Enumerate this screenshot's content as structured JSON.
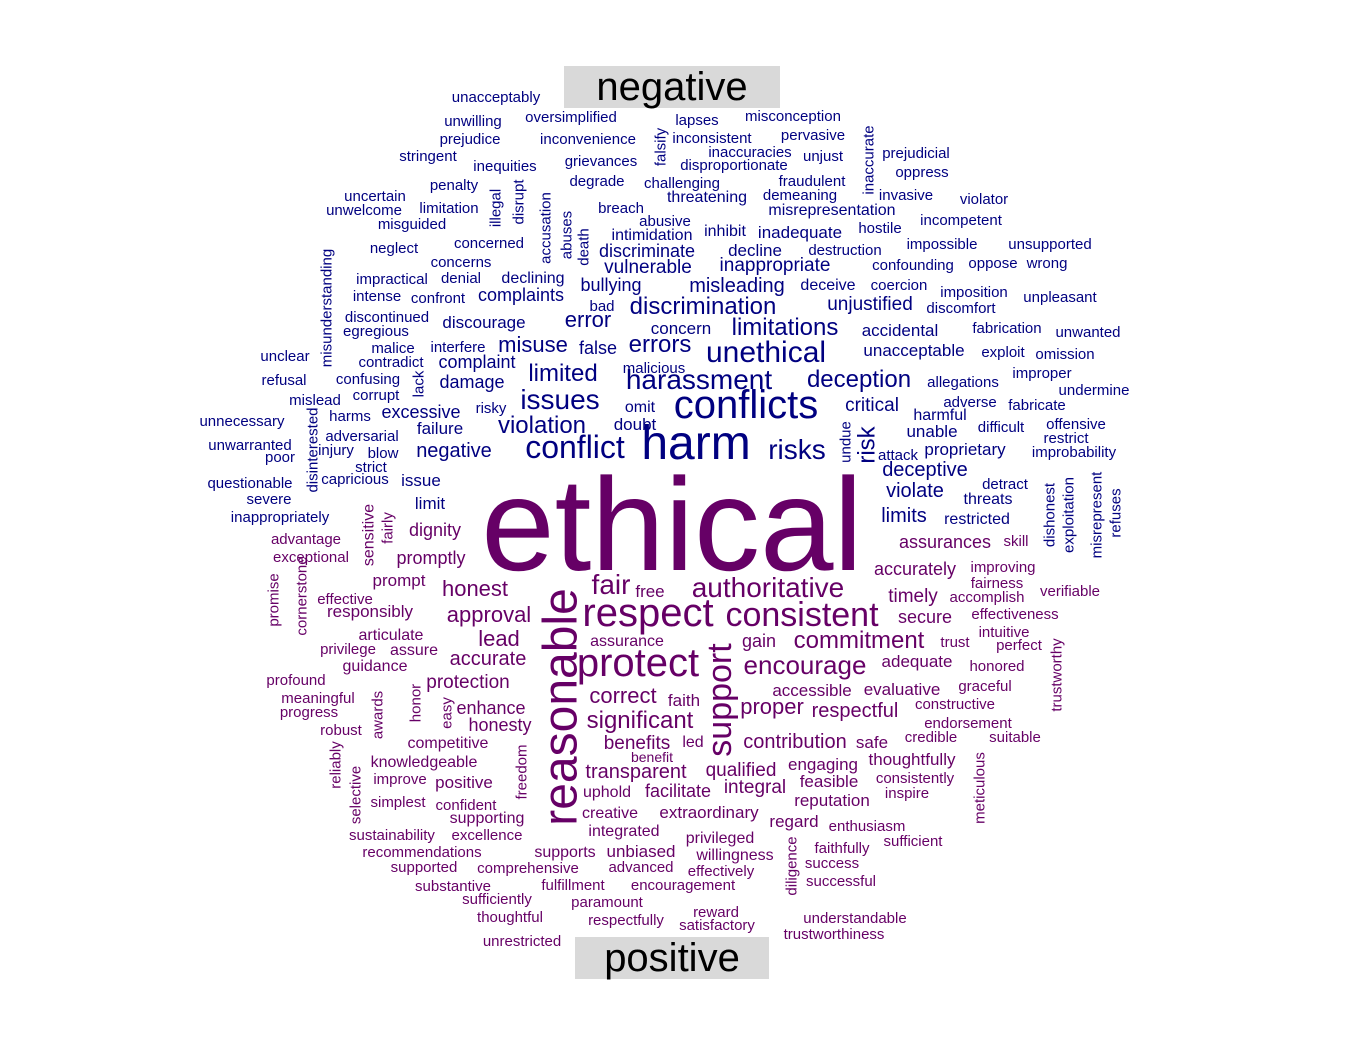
{
  "chart_data": {
    "type": "wordcloud",
    "colors": {
      "negative": "#000080",
      "positive": "#660066",
      "label_bg": "#d9d9d9",
      "label_text": "#000000"
    },
    "groups": [
      {
        "name": "negative",
        "words": [
          "conflicts",
          "harm",
          "conflict",
          "unethical",
          "harassment",
          "issues",
          "risks",
          "deception",
          "violation",
          "limitations",
          "discrimination",
          "errors",
          "limited",
          "misuse",
          "error",
          "misleading",
          "inappropriate",
          "vulnerable",
          "discriminate",
          "risk",
          "negative",
          "unjustified",
          "deceptive",
          "complaints",
          "violate",
          "bullying",
          "critical",
          "limits",
          "doubt",
          "excessive",
          "concern",
          "inadequate",
          "intimidation",
          "inhibit",
          "decline",
          "damage",
          "complaint",
          "unacceptable",
          "proprietary",
          "false",
          "discourage",
          "declining",
          "misrepresentation",
          "threatening",
          "unable",
          "failure",
          "accidental",
          "deceive",
          "restricted",
          "unsupported",
          "impossible",
          "limit",
          "threats",
          "harmful",
          "omit",
          "concerns",
          "abusive",
          "breach",
          "destruction",
          "hostile",
          "demeaning",
          "degrade",
          "challenging",
          "disproportionate",
          "inaccuracies",
          "lapses",
          "misconception",
          "inconsistent",
          "inconvenience",
          "pervasive",
          "unjust",
          "fraudulent",
          "oppress",
          "prejudicial",
          "invasive",
          "violator",
          "incompetent",
          "grievances",
          "inequities",
          "prejudice",
          "unwilling",
          "oversimplified",
          "unacceptably",
          "stringent",
          "penalty",
          "uncertain",
          "unwelcome",
          "limitation",
          "misguided",
          "neglect",
          "concerned",
          "denial",
          "impractical",
          "intense",
          "confront",
          "discontinued",
          "bad",
          "egregious",
          "malice",
          "interfere",
          "contradict",
          "unclear",
          "refusal",
          "confusing",
          "lack",
          "corrupt",
          "mislead",
          "harms",
          "risky",
          "adversarial",
          "unnecessary",
          "unwarranted",
          "poor",
          "injury",
          "blow",
          "strict",
          "capricious",
          "questionable",
          "issue",
          "severe",
          "inappropriately",
          "confounding",
          "oppose",
          "wrong",
          "coercion",
          "imposition",
          "unpleasant",
          "discomfort",
          "fabrication",
          "unwanted",
          "exploit",
          "omission",
          "improper",
          "allegations",
          "undermine",
          "adverse",
          "fabricate",
          "difficult",
          "offensive",
          "restrict",
          "attack",
          "improbability",
          "detract",
          "dishonest",
          "exploitation",
          "misrepresent",
          "refuses",
          "undue",
          "malicious",
          "accusation",
          "abuses",
          "death",
          "illegal",
          "disrupt",
          "falsify",
          "inaccurate",
          "misunderstanding",
          "disinterested"
        ]
      },
      {
        "name": "positive",
        "words": [
          "ethical",
          "reasonable",
          "respect",
          "protect",
          "consistent",
          "authoritative",
          "support",
          "fair",
          "commitment",
          "encourage",
          "significant",
          "honest",
          "approval",
          "lead",
          "accurate",
          "correct",
          "transparent",
          "proper",
          "respectful",
          "contribution",
          "qualified",
          "benefits",
          "integral",
          "facilitate",
          "protection",
          "enhance",
          "honesty",
          "accessible",
          "evaluative",
          "assurances",
          "accurately",
          "timely",
          "secure",
          "adequate",
          "gain",
          "free",
          "assurance",
          "faith",
          "led",
          "safe",
          "engaging",
          "feasible",
          "thoughtfully",
          "consistently",
          "reputation",
          "inspire",
          "regard",
          "enthusiasm",
          "sufficient",
          "faithfully",
          "success",
          "successful",
          "diligence",
          "willingness",
          "effectively",
          "privileged",
          "extraordinary",
          "creative",
          "integrated",
          "uphold",
          "benefit",
          "positive",
          "competitive",
          "knowledgeable",
          "improve",
          "simplest",
          "confident",
          "supporting",
          "excellence",
          "supports",
          "unbiased",
          "advanced",
          "comprehensive",
          "recommendations",
          "supported",
          "substantive",
          "sustainability",
          "fulfillment",
          "encouragement",
          "sufficiently",
          "paramount",
          "thoughtful",
          "respectfully",
          "reward",
          "satisfactory",
          "understandable",
          "trustworthiness",
          "unrestricted",
          "promptly",
          "prompt",
          "dignity",
          "responsibly",
          "articulate",
          "assure",
          "privilege",
          "guidance",
          "effective",
          "advantage",
          "exceptional",
          "profound",
          "meaningful",
          "progress",
          "robust",
          "reliably",
          "selective",
          "awards",
          "honor",
          "easy",
          "freedom",
          "sensitive",
          "fairly",
          "promise",
          "cornerstone",
          "improving",
          "fairness",
          "accomplish",
          "effectiveness",
          "intuitive",
          "perfect",
          "trust",
          "honored",
          "graceful",
          "constructive",
          "endorsement",
          "credible",
          "suitable",
          "meticulous",
          "trustworthy",
          "verifiable",
          "skill"
        ]
      }
    ]
  }
}
